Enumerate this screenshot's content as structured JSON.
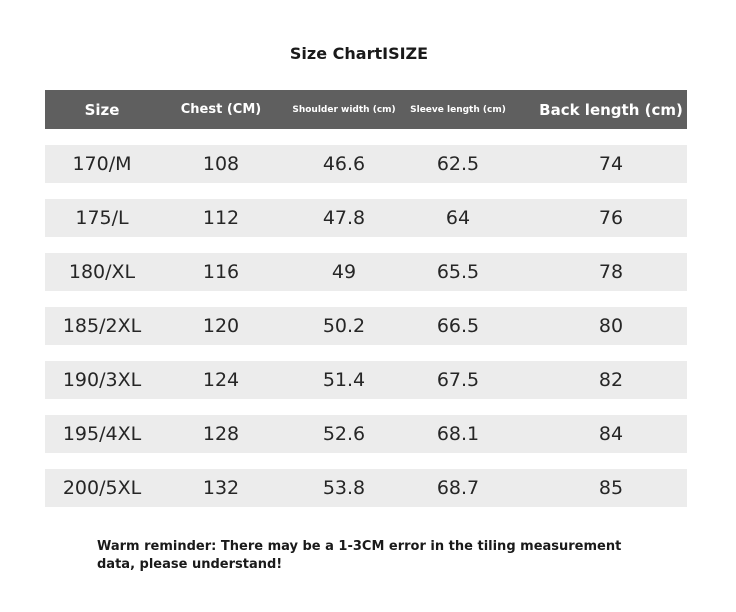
{
  "title": "Size ChartISIZE",
  "table": {
    "headers": [
      "Size",
      "Chest (CM)",
      "Shoulder width (cm)",
      "Sleeve length (cm)",
      "Back length (cm)"
    ],
    "rows": [
      [
        "170/M",
        "108",
        "46.6",
        "62.5",
        "74"
      ],
      [
        "175/L",
        "112",
        "47.8",
        "64",
        "76"
      ],
      [
        "180/XL",
        "116",
        "49",
        "65.5",
        "78"
      ],
      [
        "185/2XL",
        "120",
        "50.2",
        "66.5",
        "80"
      ],
      [
        "190/3XL",
        "124",
        "51.4",
        "67.5",
        "82"
      ],
      [
        "195/4XL",
        "128",
        "52.6",
        "68.1",
        "84"
      ],
      [
        "200/5XL",
        "132",
        "53.8",
        "68.7",
        "85"
      ]
    ]
  },
  "reminder": "Warm reminder: There may be a 1-3CM error in the tiling measurement data, please understand!",
  "colors": {
    "header_bg": "#5f5f5f",
    "row_bg": "#ececec",
    "header_text": "#ffffff"
  }
}
